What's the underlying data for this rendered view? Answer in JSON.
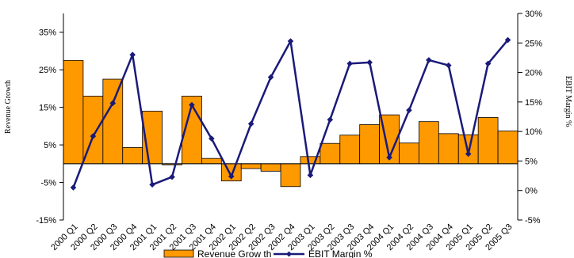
{
  "chart_data": {
    "type": "bar",
    "categories": [
      "2000 Q1",
      "2000 Q2",
      "2000 Q3",
      "2000 Q4",
      "2001 Q1",
      "2001 Q2",
      "2001 Q3",
      "2001 Q4",
      "2002 Q1",
      "2002 Q2",
      "2002 Q3",
      "2002 Q4",
      "2003 Q1",
      "2003 Q2",
      "2003 Q3",
      "2003 Q4",
      "2004 Q1",
      "2004 Q2",
      "2004 Q3",
      "2004 Q4",
      "2005 Q1",
      "2005 Q2",
      "2005 Q3"
    ],
    "series": [
      {
        "name": "Revenue Grow th",
        "type": "bar",
        "axis": "left",
        "color": "#FF9900",
        "values": [
          27.5,
          18,
          22.5,
          4.3,
          14,
          -0.3,
          18,
          1.4,
          -4.6,
          -1.3,
          -2,
          -6.1,
          1.9,
          5.4,
          7.6,
          10.4,
          13,
          5.5,
          11.2,
          8,
          7.7,
          12.3,
          8.7
        ]
      },
      {
        "name": "EBIT Margin %",
        "type": "line",
        "axis": "right",
        "color": "#1A1A7A",
        "values": [
          0.5,
          9.2,
          14.8,
          23,
          1,
          2.3,
          14.5,
          8.8,
          2.4,
          11.3,
          19.2,
          25.3,
          2.6,
          12,
          21.5,
          21.7,
          5.6,
          13.6,
          22.1,
          21.2,
          6.2,
          21.5,
          25.5
        ]
      }
    ],
    "ylabel": "Revenue Growth",
    "y2label": "EBIT Margin %",
    "ylim": [
      -15,
      40
    ],
    "yticks": [
      "-15%",
      "-5%",
      "5%",
      "15%",
      "25%",
      "35%"
    ],
    "yticks_values": [
      -15,
      -5,
      5,
      15,
      25,
      35
    ],
    "y2lim": [
      -5,
      30
    ],
    "y2ticks": [
      "-5%",
      "0%",
      "5%",
      "10%",
      "15%",
      "20%",
      "25%",
      "30%"
    ],
    "y2ticks_values": [
      -5,
      0,
      5,
      10,
      15,
      20,
      25,
      30
    ],
    "grid": false,
    "legend_position": "bottom"
  }
}
